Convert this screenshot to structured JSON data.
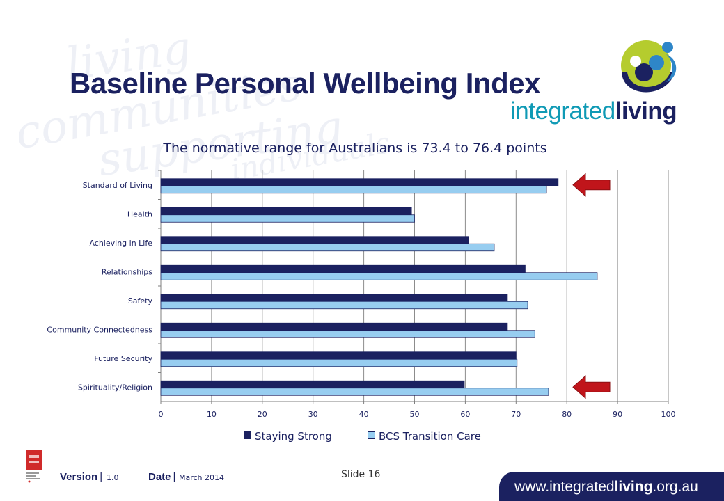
{
  "slide": {
    "title": "Baseline Personal Wellbeing Index",
    "subtitle": "The normative range for Australians is 73.4 to 76.4 points",
    "number_label": "Slide 16"
  },
  "logo": {
    "word_part1": "integrated",
    "word_part2": "living"
  },
  "footer": {
    "version_label": "Version",
    "version_value": "1.0",
    "date_label": "Date",
    "date_value": "March 2014",
    "url_part1": "www.integrated",
    "url_part2": "living",
    "url_part3": ".org.au"
  },
  "colors": {
    "navy": "#1b2160",
    "light_blue": "#97cdf0",
    "arrow_red": "#c0151b",
    "teal": "#0f9ab5",
    "lime": "#b5cc2e"
  },
  "chart_data": {
    "type": "bar",
    "orientation": "horizontal",
    "categories": [
      "Standard of Living",
      "Health",
      "Achieving in Life",
      "Relationships",
      "Safety",
      "Community Connectedness",
      "Future Security",
      "Spirituality/Religion"
    ],
    "series": [
      {
        "name": "Staying Strong",
        "color": "#1b2160",
        "values": [
          78.3,
          49.4,
          60.7,
          71.8,
          68.3,
          68.3,
          70.0,
          59.8
        ]
      },
      {
        "name": "BCS Transition Care",
        "color": "#97cdf0",
        "values": [
          76.0,
          50.0,
          65.7,
          86.0,
          72.3,
          73.7,
          70.2,
          76.4
        ]
      }
    ],
    "xlim": [
      0,
      100
    ],
    "xticks": [
      "0",
      "10",
      "20",
      "30",
      "40",
      "50",
      "60",
      "70",
      "80",
      "90",
      "100"
    ],
    "grid": true,
    "legend_position": "bottom",
    "annotations": [
      {
        "type": "arrow",
        "direction": "left",
        "category": "Standard of Living",
        "color": "#c0151b"
      },
      {
        "type": "arrow",
        "direction": "left",
        "category": "Spirituality/Religion",
        "color": "#c0151b"
      }
    ]
  }
}
